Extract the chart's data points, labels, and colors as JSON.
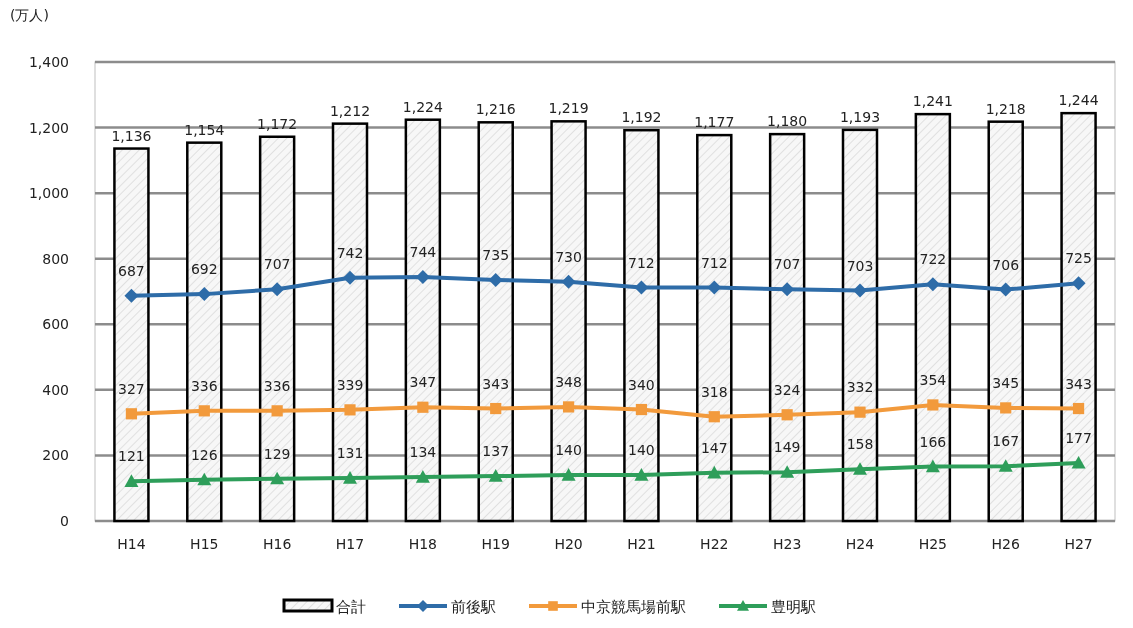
{
  "chart_data": {
    "type": "bar",
    "ylabel": "(万人)",
    "categories": [
      "H14",
      "H15",
      "H16",
      "H17",
      "H18",
      "H19",
      "H20",
      "H21",
      "H22",
      "H23",
      "H24",
      "H25",
      "H26",
      "H27"
    ],
    "series": [
      {
        "name": "合計",
        "color": "#000000",
        "values": [
          1136,
          1154,
          1172,
          1212,
          1224,
          1216,
          1219,
          1192,
          1177,
          1180,
          1193,
          1241,
          1218,
          1244
        ],
        "value_labels": [
          "1,136",
          "1,154",
          "1,172",
          "1,212",
          "1,224",
          "1,216",
          "1,219",
          "1,192",
          "1,177",
          "1,180",
          "1,193",
          "1,241",
          "1,218",
          "1,244"
        ]
      },
      {
        "name": "前後駅",
        "type": "line",
        "marker": "diamond",
        "color": "#2e6ca8",
        "values": [
          687,
          692,
          707,
          742,
          744,
          735,
          730,
          712,
          712,
          707,
          703,
          722,
          706,
          725
        ]
      },
      {
        "name": "中京競馬場前駅",
        "type": "line",
        "marker": "square",
        "color": "#f29a3c",
        "values": [
          327,
          336,
          336,
          339,
          347,
          343,
          348,
          340,
          318,
          324,
          332,
          354,
          345,
          343
        ]
      },
      {
        "name": "豊明駅",
        "type": "line",
        "marker": "triangle",
        "color": "#2e9e5a",
        "values": [
          121,
          126,
          129,
          131,
          134,
          137,
          140,
          140,
          147,
          149,
          158,
          166,
          167,
          177
        ]
      }
    ],
    "ylim": [
      0,
      1400
    ],
    "yticks": [
      0,
      200,
      400,
      600,
      800,
      {
        "value": 1000,
        "label": "1,000"
      },
      {
        "value": 1200,
        "label": "1,200"
      },
      {
        "value": 1400,
        "label": "1,400"
      }
    ],
    "grid": "y",
    "legend": "bottom",
    "data_labels": true
  }
}
